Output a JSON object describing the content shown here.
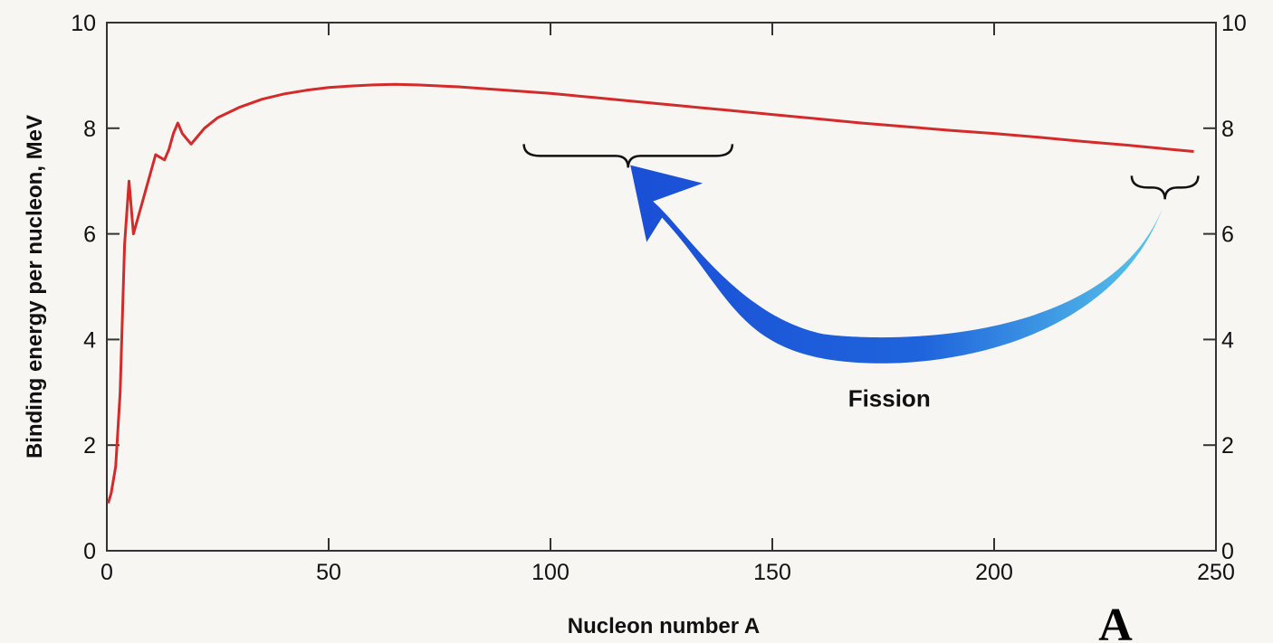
{
  "chart_data": {
    "type": "line",
    "title": "",
    "xlabel": "Nucleon number A",
    "ylabel": "Binding energy per nucleon, MeV",
    "xlim": [
      0,
      250
    ],
    "ylim": [
      0,
      10
    ],
    "x_ticks": [
      0,
      50,
      100,
      150,
      200,
      250
    ],
    "y_ticks": [
      0,
      2,
      4,
      6,
      8,
      10
    ],
    "x_tick_labels": [
      "0",
      "50",
      "100",
      "150",
      "200",
      "250"
    ],
    "y_tick_labels": [
      "0",
      "2",
      "4",
      "6",
      "8",
      "10"
    ],
    "right_y_tick_labels": [
      "0",
      "2",
      "4",
      "6",
      "8",
      "10"
    ],
    "grid": false,
    "series_color": "#d42a2a",
    "series": [
      {
        "x": [
          0.3,
          1,
          2,
          3,
          4,
          5,
          6,
          7,
          8,
          9,
          10,
          11,
          12,
          13,
          14,
          15,
          16,
          17,
          18,
          19,
          20,
          22,
          25,
          30,
          35,
          40,
          45,
          50,
          55,
          60,
          65,
          70,
          80,
          90,
          100,
          110,
          120,
          130,
          140,
          150,
          160,
          170,
          180,
          190,
          200,
          210,
          220,
          230,
          240,
          245
        ],
        "y": [
          0.9,
          1.1,
          1.6,
          3.0,
          5.8,
          7.0,
          6.0,
          6.3,
          6.6,
          6.9,
          7.2,
          7.5,
          7.45,
          7.4,
          7.6,
          7.9,
          8.1,
          7.9,
          7.8,
          7.7,
          7.8,
          8.0,
          8.2,
          8.4,
          8.55,
          8.65,
          8.72,
          8.77,
          8.8,
          8.82,
          8.83,
          8.82,
          8.78,
          8.72,
          8.66,
          8.58,
          8.5,
          8.42,
          8.34,
          8.26,
          8.18,
          8.1,
          8.03,
          7.96,
          7.9,
          7.83,
          7.75,
          7.68,
          7.6,
          7.56
        ]
      }
    ],
    "annotations": {
      "fission_label": "Fission",
      "arrow_from": {
        "x": 238,
        "y": 6.5
      },
      "arrow_to": {
        "x": 118,
        "y": 7.3
      },
      "arrow_color_start": "#1a4fd6",
      "arrow_color_end": "#5ac8ea",
      "brace_fragments": [
        94,
        141
      ],
      "brace_fragments_y": 7.7,
      "brace_heavy": [
        231,
        246
      ],
      "brace_heavy_y": 7.1
    },
    "panel_label": "A"
  }
}
